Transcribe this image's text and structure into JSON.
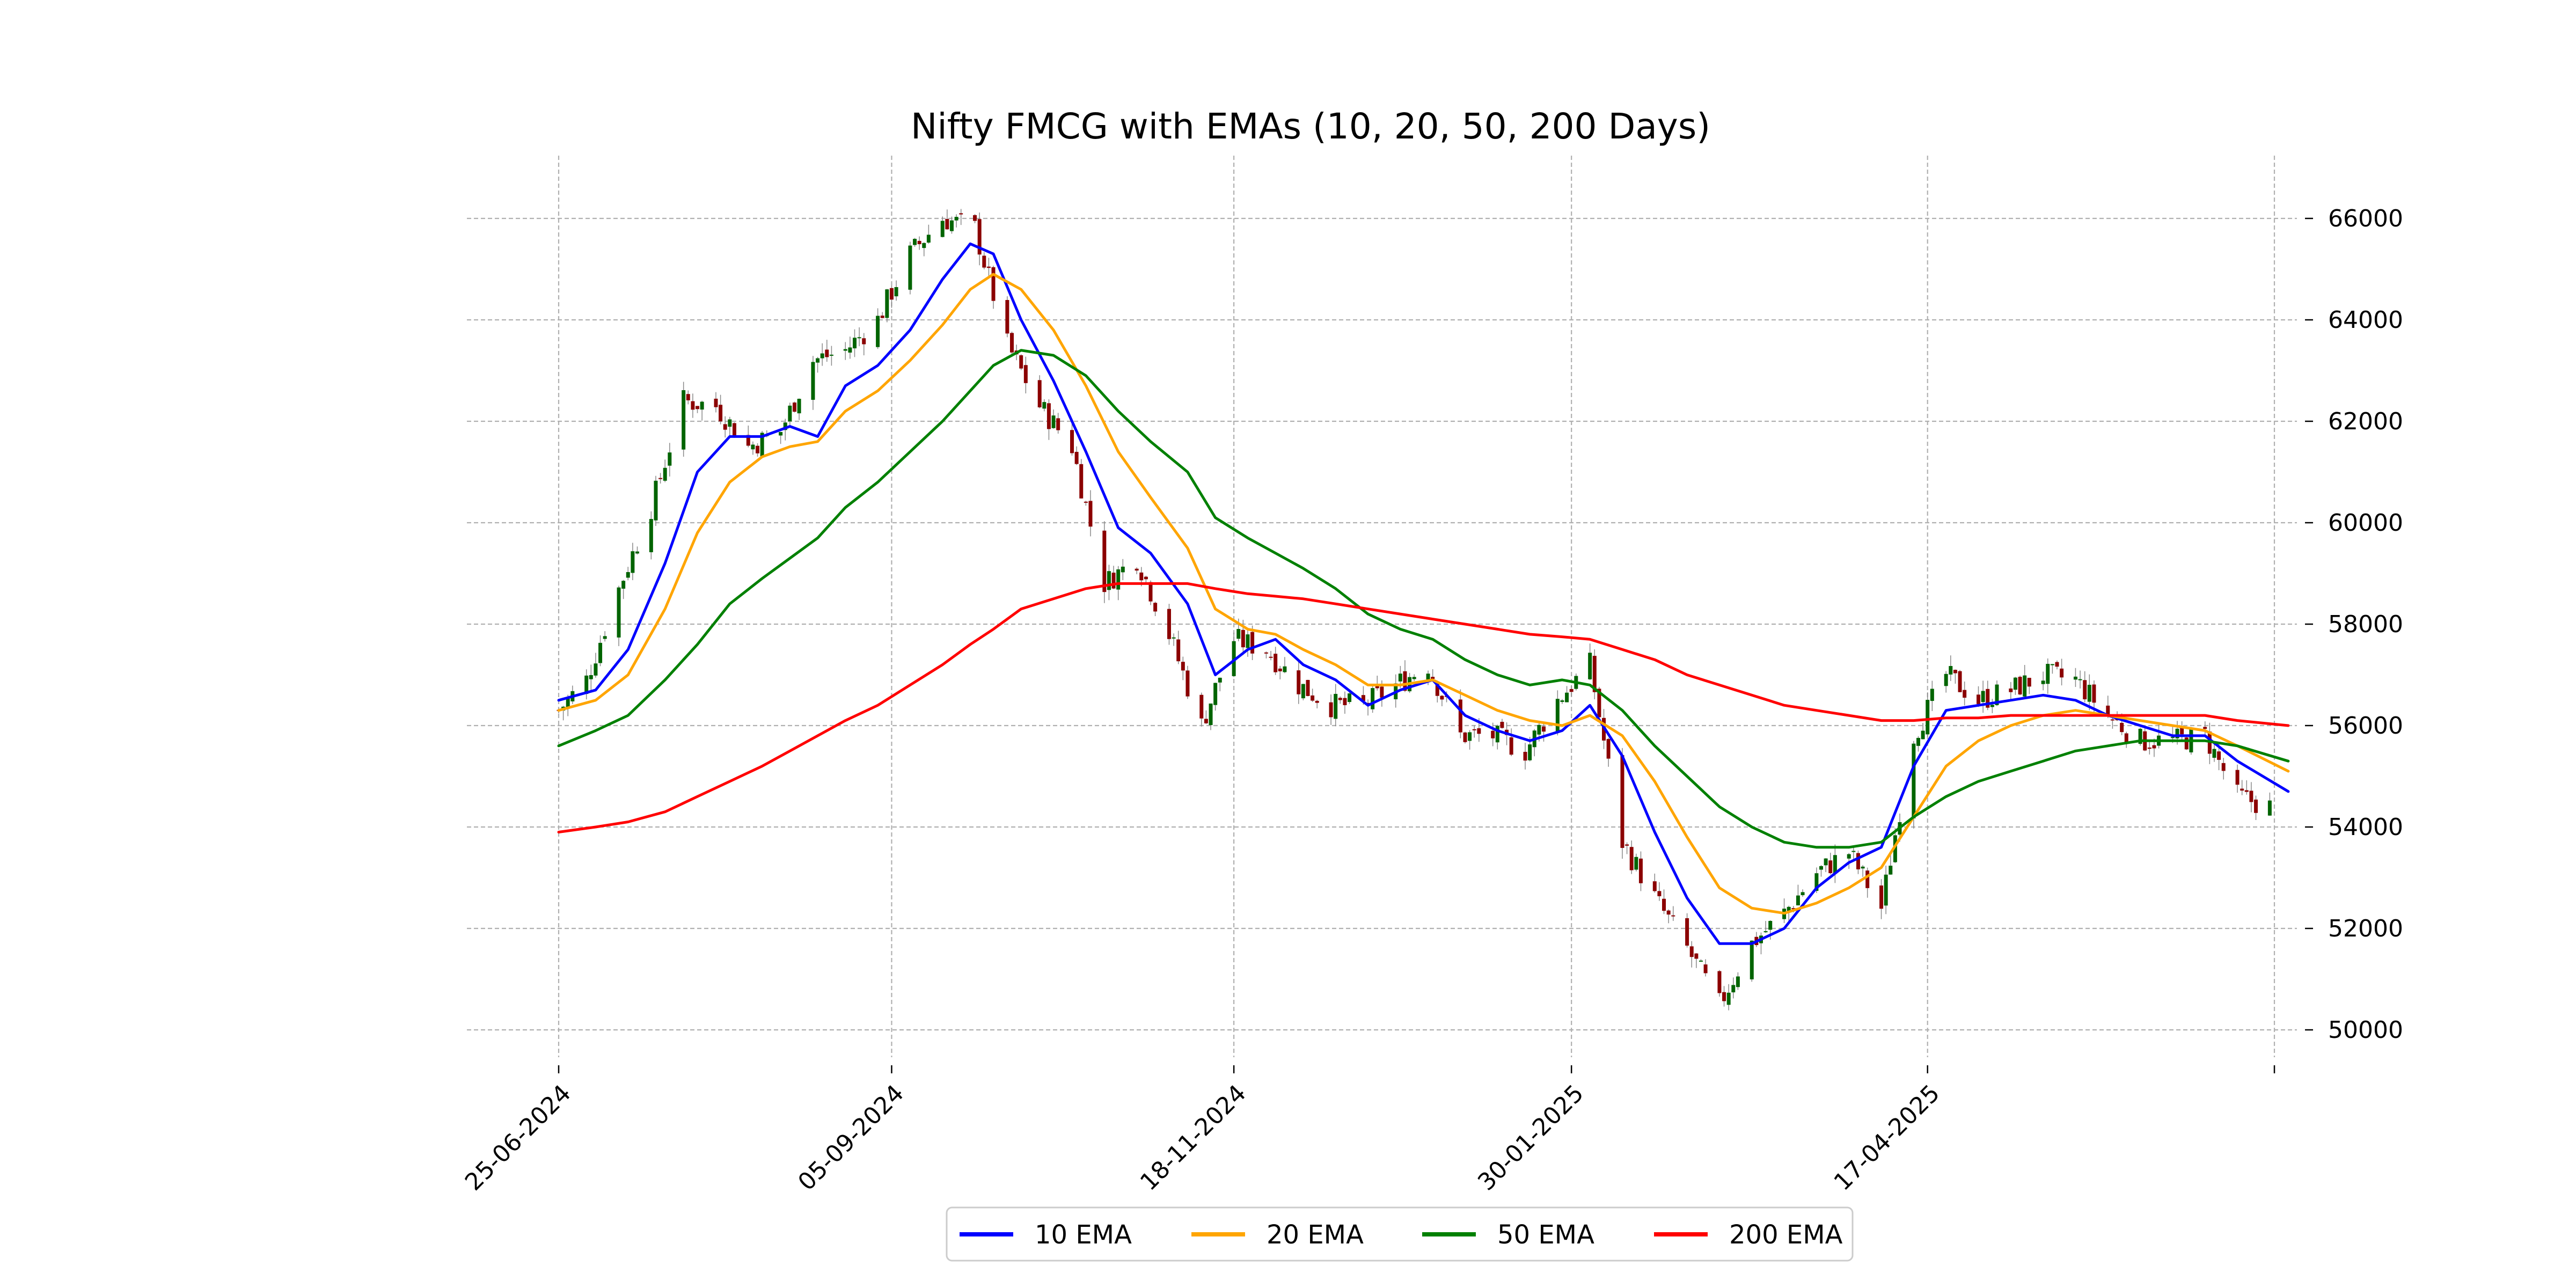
{
  "chart_data": {
    "type": "line",
    "title": "Nifty FMCG with EMAs (10, 20, 50, 200 Days)",
    "xlabel": "",
    "ylabel": "",
    "x_range": [
      "2024-06-25",
      "2025-07-04"
    ],
    "ylim": [
      49500,
      67000
    ],
    "grid": true,
    "legend_position": "bottom-center",
    "y_ticks": [
      50000,
      52000,
      54000,
      56000,
      58000,
      60000,
      62000,
      64000,
      66000
    ],
    "x_ticks": [
      {
        "date": "2024-06-25",
        "label": "25-06-2024"
      },
      {
        "date": "2024-09-05",
        "label": "05-09-2024"
      },
      {
        "date": "2024-11-18",
        "label": "18-11-2024"
      },
      {
        "date": "2025-01-30",
        "label": "30-01-2025"
      },
      {
        "date": "2025-04-17",
        "label": "17-04-2025"
      },
      {
        "date": "2025-07-01",
        "label": ""
      }
    ],
    "candle_colors": {
      "up": "#006400",
      "down": "#8b0000"
    },
    "close_path": [
      [
        "2024-06-25",
        56300
      ],
      [
        "2024-07-01",
        56900
      ],
      [
        "2024-07-08",
        58700
      ],
      [
        "2024-07-15",
        60300
      ],
      [
        "2024-07-22",
        62400
      ],
      [
        "2024-07-29",
        62300
      ],
      [
        "2024-08-05",
        61500
      ],
      [
        "2024-08-12",
        61800
      ],
      [
        "2024-08-19",
        63200
      ],
      [
        "2024-08-26",
        63400
      ],
      [
        "2024-09-02",
        64000
      ],
      [
        "2024-09-09",
        65300
      ],
      [
        "2024-09-16",
        66000
      ],
      [
        "2024-09-23",
        65800
      ],
      [
        "2024-09-30",
        63500
      ],
      [
        "2024-10-07",
        62300
      ],
      [
        "2024-10-14",
        61500
      ],
      [
        "2024-10-21",
        58800
      ],
      [
        "2024-10-28",
        59300
      ],
      [
        "2024-11-04",
        57800
      ],
      [
        "2024-11-11",
        56000
      ],
      [
        "2024-11-18",
        57700
      ],
      [
        "2024-11-25",
        57500
      ],
      [
        "2024-12-02",
        56800
      ],
      [
        "2024-12-09",
        56400
      ],
      [
        "2024-12-16",
        56400
      ],
      [
        "2024-12-23",
        56800
      ],
      [
        "2024-12-30",
        57200
      ],
      [
        "2025-01-06",
        55800
      ],
      [
        "2025-01-13",
        55800
      ],
      [
        "2025-01-20",
        55500
      ],
      [
        "2025-01-27",
        56500
      ],
      [
        "2025-02-03",
        57200
      ],
      [
        "2025-02-10",
        53700
      ],
      [
        "2025-02-17",
        52600
      ],
      [
        "2025-02-24",
        51600
      ],
      [
        "2025-03-03",
        50500
      ],
      [
        "2025-03-10",
        51700
      ],
      [
        "2025-03-17",
        52300
      ],
      [
        "2025-03-24",
        53100
      ],
      [
        "2025-03-31",
        53500
      ],
      [
        "2025-04-07",
        52400
      ],
      [
        "2025-04-14",
        55800
      ],
      [
        "2025-04-21",
        57000
      ],
      [
        "2025-04-28",
        56500
      ],
      [
        "2025-05-05",
        56700
      ],
      [
        "2025-05-12",
        57000
      ],
      [
        "2025-05-19",
        56900
      ],
      [
        "2025-05-26",
        56200
      ],
      [
        "2025-06-02",
        55700
      ],
      [
        "2025-06-09",
        55700
      ],
      [
        "2025-06-16",
        55800
      ],
      [
        "2025-06-23",
        54600
      ],
      [
        "2025-06-30",
        54400
      ]
    ],
    "series": [
      {
        "name": "10 EMA",
        "color": "#0000ff",
        "points": [
          [
            "2024-06-25",
            56500
          ],
          [
            "2024-07-03",
            56700
          ],
          [
            "2024-07-10",
            57500
          ],
          [
            "2024-07-18",
            59200
          ],
          [
            "2024-07-25",
            61000
          ],
          [
            "2024-08-01",
            61700
          ],
          [
            "2024-08-08",
            61700
          ],
          [
            "2024-08-14",
            61900
          ],
          [
            "2024-08-20",
            61700
          ],
          [
            "2024-08-26",
            62700
          ],
          [
            "2024-09-02",
            63100
          ],
          [
            "2024-09-09",
            63800
          ],
          [
            "2024-09-16",
            64800
          ],
          [
            "2024-09-22",
            65500
          ],
          [
            "2024-09-27",
            65300
          ],
          [
            "2024-10-03",
            64000
          ],
          [
            "2024-10-10",
            62800
          ],
          [
            "2024-10-17",
            61400
          ],
          [
            "2024-10-24",
            59900
          ],
          [
            "2024-10-31",
            59400
          ],
          [
            "2024-11-08",
            58400
          ],
          [
            "2024-11-14",
            57000
          ],
          [
            "2024-11-21",
            57500
          ],
          [
            "2024-11-27",
            57700
          ],
          [
            "2024-12-03",
            57200
          ],
          [
            "2024-12-10",
            56900
          ],
          [
            "2024-12-17",
            56400
          ],
          [
            "2024-12-24",
            56700
          ],
          [
            "2024-12-31",
            56900
          ],
          [
            "2025-01-07",
            56200
          ],
          [
            "2025-01-14",
            55900
          ],
          [
            "2025-01-21",
            55700
          ],
          [
            "2025-01-28",
            55900
          ],
          [
            "2025-02-03",
            56400
          ],
          [
            "2025-02-10",
            55400
          ],
          [
            "2025-02-17",
            53900
          ],
          [
            "2025-02-24",
            52600
          ],
          [
            "2025-03-03",
            51700
          ],
          [
            "2025-03-10",
            51700
          ],
          [
            "2025-03-17",
            52000
          ],
          [
            "2025-03-24",
            52800
          ],
          [
            "2025-03-31",
            53300
          ],
          [
            "2025-04-07",
            53600
          ],
          [
            "2025-04-14",
            55200
          ],
          [
            "2025-04-21",
            56300
          ],
          [
            "2025-04-28",
            56400
          ],
          [
            "2025-05-05",
            56500
          ],
          [
            "2025-05-12",
            56600
          ],
          [
            "2025-05-19",
            56500
          ],
          [
            "2025-05-26",
            56200
          ],
          [
            "2025-06-02",
            56000
          ],
          [
            "2025-06-09",
            55800
          ],
          [
            "2025-06-16",
            55800
          ],
          [
            "2025-06-23",
            55300
          ],
          [
            "2025-07-04",
            54700
          ]
        ]
      },
      {
        "name": "20 EMA",
        "color": "#ffa500",
        "points": [
          [
            "2024-06-25",
            56300
          ],
          [
            "2024-07-03",
            56500
          ],
          [
            "2024-07-10",
            57000
          ],
          [
            "2024-07-18",
            58300
          ],
          [
            "2024-07-25",
            59800
          ],
          [
            "2024-08-01",
            60800
          ],
          [
            "2024-08-08",
            61300
          ],
          [
            "2024-08-14",
            61500
          ],
          [
            "2024-08-20",
            61600
          ],
          [
            "2024-08-26",
            62200
          ],
          [
            "2024-09-02",
            62600
          ],
          [
            "2024-09-09",
            63200
          ],
          [
            "2024-09-16",
            63900
          ],
          [
            "2024-09-22",
            64600
          ],
          [
            "2024-09-27",
            64900
          ],
          [
            "2024-10-03",
            64600
          ],
          [
            "2024-10-10",
            63800
          ],
          [
            "2024-10-17",
            62700
          ],
          [
            "2024-10-24",
            61400
          ],
          [
            "2024-10-31",
            60500
          ],
          [
            "2024-11-08",
            59500
          ],
          [
            "2024-11-14",
            58300
          ],
          [
            "2024-11-21",
            57900
          ],
          [
            "2024-11-27",
            57800
          ],
          [
            "2024-12-03",
            57500
          ],
          [
            "2024-12-10",
            57200
          ],
          [
            "2024-12-17",
            56800
          ],
          [
            "2024-12-24",
            56800
          ],
          [
            "2024-12-31",
            56900
          ],
          [
            "2025-01-07",
            56600
          ],
          [
            "2025-01-14",
            56300
          ],
          [
            "2025-01-21",
            56100
          ],
          [
            "2025-01-28",
            56000
          ],
          [
            "2025-02-03",
            56200
          ],
          [
            "2025-02-10",
            55800
          ],
          [
            "2025-02-17",
            54900
          ],
          [
            "2025-02-24",
            53800
          ],
          [
            "2025-03-03",
            52800
          ],
          [
            "2025-03-10",
            52400
          ],
          [
            "2025-03-17",
            52300
          ],
          [
            "2025-03-24",
            52500
          ],
          [
            "2025-03-31",
            52800
          ],
          [
            "2025-04-07",
            53200
          ],
          [
            "2025-04-14",
            54200
          ],
          [
            "2025-04-21",
            55200
          ],
          [
            "2025-04-28",
            55700
          ],
          [
            "2025-05-05",
            56000
          ],
          [
            "2025-05-12",
            56200
          ],
          [
            "2025-05-19",
            56300
          ],
          [
            "2025-05-26",
            56200
          ],
          [
            "2025-06-02",
            56100
          ],
          [
            "2025-06-09",
            56000
          ],
          [
            "2025-06-16",
            55900
          ],
          [
            "2025-06-23",
            55600
          ],
          [
            "2025-07-04",
            55100
          ]
        ]
      },
      {
        "name": "50 EMA",
        "color": "#008000",
        "points": [
          [
            "2024-06-25",
            55600
          ],
          [
            "2024-07-03",
            55900
          ],
          [
            "2024-07-10",
            56200
          ],
          [
            "2024-07-18",
            56900
          ],
          [
            "2024-07-25",
            57600
          ],
          [
            "2024-08-01",
            58400
          ],
          [
            "2024-08-08",
            58900
          ],
          [
            "2024-08-14",
            59300
          ],
          [
            "2024-08-20",
            59700
          ],
          [
            "2024-08-26",
            60300
          ],
          [
            "2024-09-02",
            60800
          ],
          [
            "2024-09-09",
            61400
          ],
          [
            "2024-09-16",
            62000
          ],
          [
            "2024-09-22",
            62600
          ],
          [
            "2024-09-27",
            63100
          ],
          [
            "2024-10-03",
            63400
          ],
          [
            "2024-10-10",
            63300
          ],
          [
            "2024-10-17",
            62900
          ],
          [
            "2024-10-24",
            62200
          ],
          [
            "2024-10-31",
            61600
          ],
          [
            "2024-11-08",
            61000
          ],
          [
            "2024-11-14",
            60100
          ],
          [
            "2024-11-21",
            59700
          ],
          [
            "2024-11-27",
            59400
          ],
          [
            "2024-12-03",
            59100
          ],
          [
            "2024-12-10",
            58700
          ],
          [
            "2024-12-17",
            58200
          ],
          [
            "2024-12-24",
            57900
          ],
          [
            "2024-12-31",
            57700
          ],
          [
            "2025-01-07",
            57300
          ],
          [
            "2025-01-14",
            57000
          ],
          [
            "2025-01-21",
            56800
          ],
          [
            "2025-01-28",
            56900
          ],
          [
            "2025-02-03",
            56800
          ],
          [
            "2025-02-10",
            56300
          ],
          [
            "2025-02-17",
            55600
          ],
          [
            "2025-02-24",
            55000
          ],
          [
            "2025-03-03",
            54400
          ],
          [
            "2025-03-10",
            54000
          ],
          [
            "2025-03-17",
            53700
          ],
          [
            "2025-03-24",
            53600
          ],
          [
            "2025-03-31",
            53600
          ],
          [
            "2025-04-07",
            53700
          ],
          [
            "2025-04-14",
            54200
          ],
          [
            "2025-04-21",
            54600
          ],
          [
            "2025-04-28",
            54900
          ],
          [
            "2025-05-05",
            55100
          ],
          [
            "2025-05-12",
            55300
          ],
          [
            "2025-05-19",
            55500
          ],
          [
            "2025-05-26",
            55600
          ],
          [
            "2025-06-02",
            55700
          ],
          [
            "2025-06-09",
            55700
          ],
          [
            "2025-06-16",
            55700
          ],
          [
            "2025-06-23",
            55600
          ],
          [
            "2025-07-04",
            55300
          ]
        ]
      },
      {
        "name": "200 EMA",
        "color": "#ff0000",
        "points": [
          [
            "2024-06-25",
            53900
          ],
          [
            "2024-07-03",
            54000
          ],
          [
            "2024-07-10",
            54100
          ],
          [
            "2024-07-18",
            54300
          ],
          [
            "2024-07-25",
            54600
          ],
          [
            "2024-08-01",
            54900
          ],
          [
            "2024-08-08",
            55200
          ],
          [
            "2024-08-14",
            55500
          ],
          [
            "2024-08-20",
            55800
          ],
          [
            "2024-08-26",
            56100
          ],
          [
            "2024-09-02",
            56400
          ],
          [
            "2024-09-09",
            56800
          ],
          [
            "2024-09-16",
            57200
          ],
          [
            "2024-09-22",
            57600
          ],
          [
            "2024-09-27",
            57900
          ],
          [
            "2024-10-03",
            58300
          ],
          [
            "2024-10-10",
            58500
          ],
          [
            "2024-10-17",
            58700
          ],
          [
            "2024-10-24",
            58800
          ],
          [
            "2024-10-31",
            58800
          ],
          [
            "2024-11-08",
            58800
          ],
          [
            "2024-11-14",
            58700
          ],
          [
            "2024-11-21",
            58600
          ],
          [
            "2024-11-27",
            58550
          ],
          [
            "2024-12-03",
            58500
          ],
          [
            "2024-12-10",
            58400
          ],
          [
            "2024-12-17",
            58300
          ],
          [
            "2024-12-24",
            58200
          ],
          [
            "2024-12-31",
            58100
          ],
          [
            "2025-01-07",
            58000
          ],
          [
            "2025-01-14",
            57900
          ],
          [
            "2025-01-21",
            57800
          ],
          [
            "2025-01-28",
            57750
          ],
          [
            "2025-02-03",
            57700
          ],
          [
            "2025-02-10",
            57500
          ],
          [
            "2025-02-17",
            57300
          ],
          [
            "2025-02-24",
            57000
          ],
          [
            "2025-03-03",
            56800
          ],
          [
            "2025-03-10",
            56600
          ],
          [
            "2025-03-17",
            56400
          ],
          [
            "2025-03-24",
            56300
          ],
          [
            "2025-03-31",
            56200
          ],
          [
            "2025-04-07",
            56100
          ],
          [
            "2025-04-14",
            56100
          ],
          [
            "2025-04-21",
            56150
          ],
          [
            "2025-04-28",
            56150
          ],
          [
            "2025-05-05",
            56200
          ],
          [
            "2025-05-12",
            56200
          ],
          [
            "2025-05-19",
            56200
          ],
          [
            "2025-05-26",
            56200
          ],
          [
            "2025-06-02",
            56200
          ],
          [
            "2025-06-09",
            56200
          ],
          [
            "2025-06-16",
            56200
          ],
          [
            "2025-06-23",
            56100
          ],
          [
            "2025-07-04",
            56000
          ]
        ]
      }
    ]
  }
}
